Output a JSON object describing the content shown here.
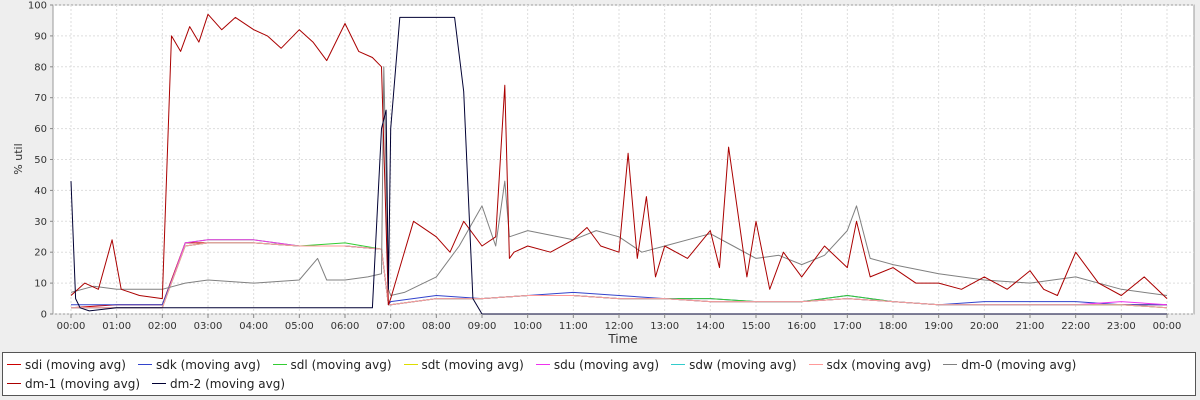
{
  "chart_data": {
    "type": "line",
    "xlabel": "Time",
    "ylabel": "% util",
    "ylim": [
      0,
      100
    ],
    "yticks": [
      0,
      10,
      20,
      30,
      40,
      50,
      60,
      70,
      80,
      90,
      100
    ],
    "xlim": [
      0,
      24
    ],
    "xticks": [
      "00:00",
      "01:00",
      "02:00",
      "03:00",
      "04:00",
      "05:00",
      "06:00",
      "07:00",
      "08:00",
      "09:00",
      "10:00",
      "11:00",
      "12:00",
      "13:00",
      "14:00",
      "15:00",
      "16:00",
      "17:00",
      "18:00",
      "19:00",
      "20:00",
      "21:00",
      "22:00",
      "23:00",
      "00:00"
    ],
    "grid": true,
    "legend_position": "bottom",
    "series": [
      {
        "name": "sdi (moving avg)",
        "color": "#cc0000",
        "x": [
          0,
          1,
          2,
          2.5,
          3,
          4,
          5,
          6,
          6.8,
          6.95,
          7,
          8,
          9,
          10,
          11,
          12,
          13,
          14,
          15,
          16,
          17,
          18,
          19,
          20,
          21,
          22,
          23,
          24
        ],
        "y": [
          2,
          3,
          3,
          23,
          23,
          23,
          22,
          22,
          21,
          3,
          3,
          5,
          5,
          6,
          6,
          5,
          5,
          4,
          4,
          4,
          5,
          4,
          3,
          3,
          3,
          3,
          3,
          3
        ]
      },
      {
        "name": "sdk (moving avg)",
        "color": "#3344cc",
        "x": [
          0,
          1,
          2,
          2.5,
          3,
          4,
          5,
          6,
          6.8,
          6.95,
          7,
          8,
          9,
          10,
          11,
          12,
          13,
          14,
          15,
          16,
          17,
          18,
          19,
          20,
          21,
          22,
          23,
          24
        ],
        "y": [
          3,
          3,
          3,
          22,
          23,
          23,
          22,
          22,
          21,
          3,
          4,
          6,
          5,
          6,
          7,
          6,
          5,
          5,
          4,
          4,
          6,
          4,
          3,
          4,
          4,
          4,
          3,
          3
        ]
      },
      {
        "name": "sdl (moving avg)",
        "color": "#33cc33",
        "x": [
          0,
          1,
          2,
          2.5,
          3,
          4,
          5,
          6,
          6.8,
          6.95,
          7,
          8,
          9,
          10,
          11,
          12,
          13,
          14,
          15,
          16,
          17,
          18,
          19,
          20,
          21,
          22,
          23,
          24
        ],
        "y": [
          2,
          2,
          2,
          23,
          24,
          24,
          22,
          23,
          21,
          3,
          3,
          5,
          5,
          6,
          6,
          5,
          5,
          5,
          4,
          4,
          6,
          4,
          3,
          3,
          3,
          3,
          3,
          2
        ]
      },
      {
        "name": "sdt (moving avg)",
        "color": "#dddd00",
        "x": [
          0,
          1,
          2,
          2.5,
          3,
          4,
          5,
          6,
          6.8,
          6.95,
          7,
          8,
          9,
          10,
          11,
          12,
          13,
          14,
          15,
          16,
          17,
          18,
          19,
          20,
          21,
          22,
          23,
          24
        ],
        "y": [
          2,
          2,
          2,
          22,
          23,
          23,
          22,
          22,
          21,
          3,
          3,
          5,
          5,
          6,
          6,
          5,
          5,
          4,
          4,
          4,
          5,
          4,
          3,
          3,
          3,
          3,
          3,
          2
        ]
      },
      {
        "name": "sdu (moving avg)",
        "color": "#ee33ee",
        "x": [
          0,
          1,
          2,
          2.5,
          3,
          4,
          5,
          6,
          6.8,
          6.95,
          7,
          8,
          9,
          10,
          11,
          12,
          13,
          14,
          15,
          16,
          17,
          18,
          19,
          20,
          21,
          22,
          23,
          24
        ],
        "y": [
          2,
          2,
          2,
          23,
          24,
          24,
          22,
          22,
          21,
          3,
          3,
          5,
          5,
          6,
          6,
          5,
          5,
          4,
          4,
          4,
          5,
          4,
          3,
          3,
          3,
          3,
          4,
          3
        ]
      },
      {
        "name": "sdw (moving avg)",
        "color": "#33cccc",
        "x": [
          0,
          1,
          2,
          2.5,
          3,
          4,
          5,
          6,
          6.8,
          6.95,
          7,
          8,
          9,
          10,
          11,
          12,
          13,
          14,
          15,
          16,
          17,
          18,
          19,
          20,
          21,
          22,
          23,
          24
        ],
        "y": [
          2,
          2,
          2,
          22,
          23,
          23,
          22,
          22,
          21,
          3,
          3,
          5,
          5,
          6,
          6,
          5,
          5,
          4,
          4,
          4,
          5,
          4,
          3,
          3,
          3,
          3,
          3,
          2
        ]
      },
      {
        "name": "sdx (moving avg)",
        "color": "#ff9999",
        "x": [
          0,
          1,
          2,
          2.5,
          3,
          4,
          5,
          6,
          6.8,
          6.95,
          7,
          8,
          9,
          10,
          11,
          12,
          13,
          14,
          15,
          16,
          17,
          18,
          19,
          20,
          21,
          22,
          23,
          24
        ],
        "y": [
          2,
          2,
          2,
          22,
          23,
          23,
          22,
          22,
          21,
          3,
          3,
          5,
          5,
          6,
          6,
          5,
          5,
          4,
          4,
          4,
          5,
          4,
          3,
          3,
          3,
          3,
          3,
          2
        ]
      },
      {
        "name": "dm-0 (moving avg)",
        "color": "#808080",
        "x": [
          0,
          0.5,
          1,
          2,
          2.5,
          3,
          4,
          5,
          5.4,
          5.6,
          6,
          6.5,
          6.8,
          6.85,
          6.95,
          7,
          7.3,
          8,
          8.5,
          9,
          9.3,
          9.5,
          9.6,
          10,
          11,
          11.5,
          12,
          12.5,
          13,
          14,
          14.5,
          15,
          15.5,
          16,
          16.5,
          17,
          17.2,
          17.5,
          18,
          19,
          20,
          21,
          22,
          23,
          24
        ],
        "y": [
          7,
          9,
          8,
          8,
          10,
          11,
          10,
          11,
          18,
          11,
          11,
          12,
          13,
          80,
          8,
          6,
          7,
          12,
          22,
          35,
          22,
          43,
          25,
          27,
          24,
          27,
          25,
          20,
          22,
          26,
          22,
          18,
          19,
          16,
          19,
          27,
          35,
          18,
          16,
          13,
          11,
          10,
          12,
          8,
          6
        ]
      },
      {
        "name": "dm-1 (moving avg)",
        "color": "#aa0000",
        "x": [
          0,
          0.3,
          0.6,
          0.9,
          1.1,
          1.5,
          2,
          2.2,
          2.4,
          2.6,
          2.8,
          3,
          3.3,
          3.6,
          4,
          4.3,
          4.6,
          5,
          5.3,
          5.6,
          6,
          6.3,
          6.6,
          6.8,
          6.95,
          7,
          7.2,
          7.5,
          8,
          8.3,
          8.6,
          9,
          9.3,
          9.5,
          9.6,
          9.7,
          10,
          10.5,
          11,
          11.3,
          11.6,
          12,
          12.2,
          12.4,
          12.6,
          12.8,
          13,
          13.5,
          14,
          14.2,
          14.4,
          14.8,
          15,
          15.3,
          15.6,
          16,
          16.5,
          17,
          17.2,
          17.5,
          18,
          18.5,
          19,
          19.5,
          20,
          20.5,
          21,
          21.3,
          21.6,
          22,
          22.5,
          23,
          23.5,
          24
        ],
        "y": [
          6,
          10,
          8,
          24,
          8,
          6,
          5,
          90,
          85,
          93,
          88,
          97,
          92,
          96,
          92,
          90,
          86,
          92,
          88,
          82,
          94,
          85,
          83,
          80,
          3,
          5,
          15,
          30,
          25,
          20,
          30,
          22,
          25,
          74,
          18,
          20,
          22,
          20,
          24,
          28,
          22,
          20,
          52,
          18,
          38,
          12,
          22,
          18,
          27,
          15,
          54,
          12,
          30,
          8,
          20,
          12,
          22,
          15,
          30,
          12,
          15,
          10,
          10,
          8,
          12,
          8,
          14,
          8,
          6,
          20,
          10,
          6,
          12,
          5
        ]
      },
      {
        "name": "dm-2 (moving avg)",
        "color": "#000033",
        "x": [
          0,
          0.1,
          0.2,
          0.4,
          1,
          2,
          2.5,
          3,
          4,
          5,
          5.5,
          6,
          6.6,
          6.8,
          6.9,
          6.95,
          7,
          7.2,
          7.5,
          8,
          8.4,
          8.6,
          8.8,
          9,
          10,
          12,
          14,
          16,
          18,
          20,
          22,
          24
        ],
        "y": [
          43,
          5,
          2,
          1,
          2,
          2,
          2,
          2,
          2,
          2,
          2,
          2,
          2,
          60,
          66,
          8,
          60,
          96,
          96,
          96,
          96,
          72,
          5,
          0,
          0,
          0,
          0,
          0,
          0,
          0,
          0,
          0
        ]
      }
    ]
  }
}
